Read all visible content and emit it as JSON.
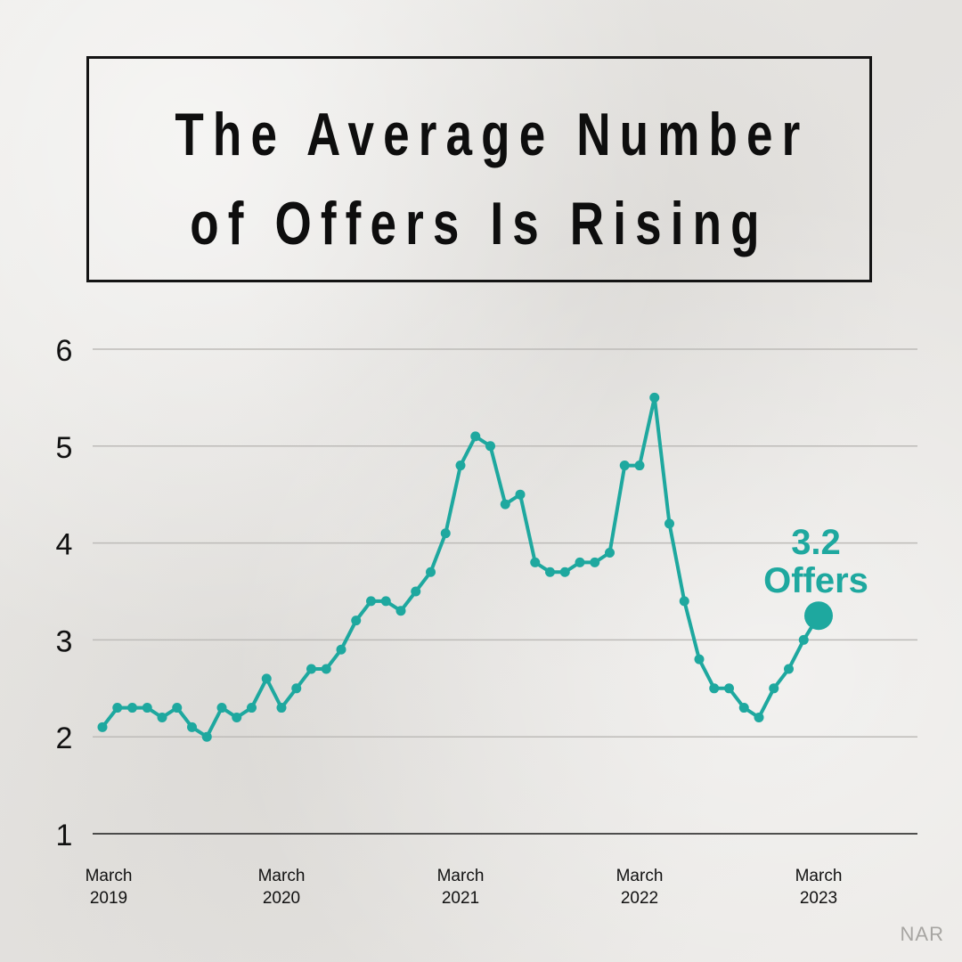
{
  "title": {
    "line1": "The Average Number",
    "line2": "of Offers Is Rising"
  },
  "source": "NAR",
  "colors": {
    "series": "#1ea89f",
    "grid": "#bdbbb8",
    "axis": "#1a1a1a",
    "text": "#111111"
  },
  "chart_data": {
    "type": "line",
    "title": "The Average Number of Offers Is Rising",
    "xlabel": "",
    "ylabel": "",
    "ylim": [
      1,
      6
    ],
    "yticks": [
      1,
      2,
      3,
      4,
      5,
      6
    ],
    "grid": true,
    "x_labels": [
      {
        "index": 0,
        "line1": "March",
        "line2": "2019"
      },
      {
        "index": 12,
        "line1": "March",
        "line2": "2020"
      },
      {
        "index": 24,
        "line1": "March",
        "line2": "2021"
      },
      {
        "index": 36,
        "line1": "March",
        "line2": "2022"
      },
      {
        "index": 48,
        "line1": "March",
        "line2": "2023"
      }
    ],
    "series": [
      {
        "values": [
          2.1,
          2.3,
          2.3,
          2.3,
          2.2,
          2.3,
          2.1,
          2.0,
          2.3,
          2.2,
          2.3,
          2.6,
          2.3,
          2.5,
          2.7,
          2.7,
          2.9,
          3.2,
          3.4,
          3.4,
          3.3,
          3.5,
          3.7,
          4.1,
          4.8,
          5.1,
          5.0,
          4.4,
          4.5,
          3.8,
          3.7,
          3.7,
          3.8,
          3.8,
          3.9,
          4.8,
          4.8,
          5.5,
          4.2,
          3.4,
          2.8,
          2.5,
          2.5,
          2.3,
          2.2,
          2.5,
          2.7,
          3.0,
          3.25
        ]
      }
    ],
    "annotation": {
      "index": 48,
      "value_text": "3.2",
      "unit_text": "Offers"
    }
  }
}
